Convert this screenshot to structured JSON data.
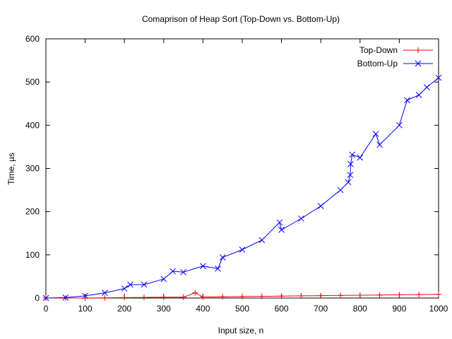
{
  "chart_data": {
    "type": "line",
    "title": "Comaprison of Heap Sort (Top-Down vs. Bottom-Up)",
    "xlabel": "Input size, n",
    "ylabel": "Time, µs",
    "xlim": [
      0,
      1000
    ],
    "ylim": [
      0,
      600
    ],
    "xticks": [
      0,
      100,
      200,
      300,
      400,
      500,
      600,
      700,
      800,
      900,
      1000
    ],
    "yticks": [
      0,
      100,
      200,
      300,
      400,
      500,
      600
    ],
    "grid": false,
    "legend": "top-right",
    "series": [
      {
        "name": "Top-Down",
        "color": "#ff0000",
        "marker": "plus",
        "points": [
          [
            0,
            0
          ],
          [
            50,
            0
          ],
          [
            100,
            0
          ],
          [
            150,
            0.5
          ],
          [
            200,
            1
          ],
          [
            250,
            1.5
          ],
          [
            300,
            2
          ],
          [
            350,
            2
          ],
          [
            380,
            12
          ],
          [
            400,
            2.5
          ],
          [
            450,
            3
          ],
          [
            500,
            3.5
          ],
          [
            550,
            4
          ],
          [
            600,
            4.5
          ],
          [
            650,
            5
          ],
          [
            700,
            5.5
          ],
          [
            750,
            6
          ],
          [
            800,
            6.5
          ],
          [
            850,
            7
          ],
          [
            900,
            7.5
          ],
          [
            950,
            8
          ],
          [
            1000,
            8.5
          ]
        ]
      },
      {
        "name": "Bottom-Up",
        "color": "#0000ff",
        "marker": "x",
        "points": [
          [
            0,
            0
          ],
          [
            50,
            1
          ],
          [
            100,
            5
          ],
          [
            150,
            12
          ],
          [
            200,
            22
          ],
          [
            215,
            31
          ],
          [
            250,
            31
          ],
          [
            300,
            44
          ],
          [
            323,
            62
          ],
          [
            350,
            60
          ],
          [
            400,
            74
          ],
          [
            438,
            68
          ],
          [
            450,
            94
          ],
          [
            500,
            112
          ],
          [
            550,
            134
          ],
          [
            595,
            175
          ],
          [
            600,
            158
          ],
          [
            650,
            184
          ],
          [
            700,
            213
          ],
          [
            750,
            250
          ],
          [
            770,
            268
          ],
          [
            775,
            285
          ],
          [
            776,
            310
          ],
          [
            780,
            332
          ],
          [
            800,
            325
          ],
          [
            840,
            380
          ],
          [
            850,
            355
          ],
          [
            900,
            400
          ],
          [
            920,
            458
          ],
          [
            950,
            470
          ],
          [
            970,
            488
          ],
          [
            1000,
            510
          ]
        ]
      }
    ]
  }
}
